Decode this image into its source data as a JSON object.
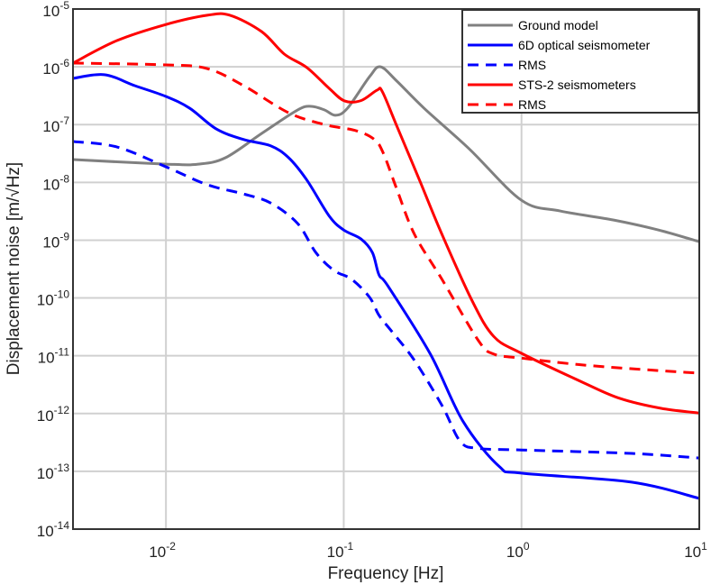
{
  "chart_data": {
    "type": "line",
    "title": "",
    "xlabel": "Frequency [Hz]",
    "ylabel": "Displacement noise [m/√Hz]",
    "xscale": "log",
    "yscale": "log",
    "xlim": [
      0.003,
      10
    ],
    "ylim": [
      1e-14,
      1e-05
    ],
    "grid": true,
    "legend_position": "top-right",
    "xticks": [
      {
        "value": 0.01,
        "base": "10",
        "exp": "-2"
      },
      {
        "value": 0.1,
        "base": "10",
        "exp": "-1"
      },
      {
        "value": 1,
        "base": "10",
        "exp": "0"
      },
      {
        "value": 10,
        "base": "10",
        "exp": "1"
      }
    ],
    "yticks": [
      {
        "value": 1e-05,
        "base": "10",
        "exp": "-5"
      },
      {
        "value": 1e-06,
        "base": "10",
        "exp": "-6"
      },
      {
        "value": 1e-07,
        "base": "10",
        "exp": "-7"
      },
      {
        "value": 1e-08,
        "base": "10",
        "exp": "-8"
      },
      {
        "value": 1e-09,
        "base": "10",
        "exp": "-9"
      },
      {
        "value": 1e-10,
        "base": "10",
        "exp": "-10"
      },
      {
        "value": 1e-11,
        "base": "10",
        "exp": "-11"
      },
      {
        "value": 1e-12,
        "base": "10",
        "exp": "-12"
      },
      {
        "value": 1e-13,
        "base": "10",
        "exp": "-13"
      },
      {
        "value": 1e-14,
        "base": "10",
        "exp": "-14"
      }
    ],
    "series": [
      {
        "name": "Ground model",
        "color": "#808080",
        "dash": false,
        "x": [
          0.003,
          0.01,
          0.0152,
          0.0216,
          0.0345,
          0.055,
          0.0657,
          0.078,
          0.09,
          0.105,
          0.14,
          0.161,
          0.199,
          0.283,
          0.508,
          1,
          1.65,
          3.3,
          5.9,
          10
        ],
        "y": [
          2.48e-08,
          2.07e-08,
          2.07e-08,
          2.67e-08,
          7e-08,
          1.79e-07,
          2.07e-07,
          1.79e-07,
          1.45e-07,
          1.92e-07,
          6.8e-07,
          1e-06,
          5.65e-07,
          1.92e-07,
          3.8e-08,
          4.9e-09,
          3.2e-09,
          2.23e-09,
          1.5e-09,
          9.4e-10
        ]
      },
      {
        "name": "6D optical seismometer",
        "color": "#0000ff",
        "dash": false,
        "x": [
          0.003,
          0.0045,
          0.0067,
          0.01,
          0.0136,
          0.0192,
          0.0274,
          0.0388,
          0.049,
          0.062,
          0.083,
          0.1,
          0.125,
          0.145,
          0.158,
          0.178,
          0.307,
          0.468,
          0.746,
          1,
          4.16,
          10
        ],
        "y": [
          6.3e-07,
          7.3e-07,
          4.7e-07,
          3.07e-07,
          1.92e-07,
          8.4e-08,
          5.5e-08,
          4.3e-08,
          2.67e-08,
          1.1e-08,
          2.6e-09,
          1.5e-09,
          1.05e-09,
          6.1e-10,
          2.5e-10,
          1.58e-10,
          1.07e-11,
          7.4e-13,
          1.23e-13,
          9.3e-14,
          6.5e-14,
          3.4e-14
        ]
      },
      {
        "name": "RMS",
        "color": "#0000ff",
        "dash": true,
        "x": [
          0.003,
          0.0053,
          0.01,
          0.0171,
          0.0274,
          0.0388,
          0.055,
          0.0697,
          0.088,
          0.111,
          0.14,
          0.158,
          0.187,
          0.25,
          0.357,
          0.452,
          0.57,
          1,
          4.16,
          10
        ],
        "y": [
          5.1e-08,
          4.1e-08,
          1.86e-08,
          9.1e-09,
          6.3e-09,
          4.4e-09,
          1.95e-09,
          6.1e-10,
          3e-10,
          2.1e-10,
          1.02e-10,
          5e-11,
          2.6e-11,
          8.3e-12,
          1.38e-12,
          3.3e-13,
          2.5e-13,
          2.34e-13,
          2.04e-13,
          1.7e-13
        ]
      },
      {
        "name": "STS-2 seismometers",
        "color": "#ff0000",
        "dash": false,
        "x": [
          0.003,
          0.0053,
          0.01,
          0.0171,
          0.0229,
          0.0345,
          0.0463,
          0.062,
          0.083,
          0.101,
          0.125,
          0.154,
          0.165,
          0.199,
          0.267,
          0.357,
          0.526,
          0.697,
          1,
          2.24,
          3.57,
          6.1,
          10
        ],
        "y": [
          1.16e-06,
          2.84e-06,
          5.4e-06,
          7.8e-06,
          7.8e-06,
          4.07e-06,
          1.66e-06,
          9.7e-07,
          4.2e-07,
          2.57e-07,
          2.6e-07,
          3.95e-07,
          3.7e-07,
          9.4e-08,
          1.09e-08,
          1.26e-09,
          9.1e-11,
          2.17e-11,
          1.1e-11,
          3.4e-12,
          1.83e-12,
          1.23e-12,
          1.02e-12
        ]
      },
      {
        "name": "RMS",
        "color": "#ff0000",
        "dash": true,
        "x": [
          0.003,
          0.01,
          0.0171,
          0.0274,
          0.049,
          0.078,
          0.118,
          0.149,
          0.167,
          0.199,
          0.25,
          0.357,
          0.57,
          0.697,
          1,
          2.24,
          6.1,
          10
        ],
        "y": [
          1.16e-06,
          1.08e-06,
          9.3e-07,
          4.7e-07,
          1.6e-07,
          1e-07,
          7.8e-08,
          5.5e-08,
          3.2e-08,
          7.6e-09,
          1.26e-09,
          2.1e-10,
          1.86e-11,
          1.07e-11,
          9.1e-12,
          6.9e-12,
          5.5e-12,
          5e-12
        ]
      }
    ]
  }
}
